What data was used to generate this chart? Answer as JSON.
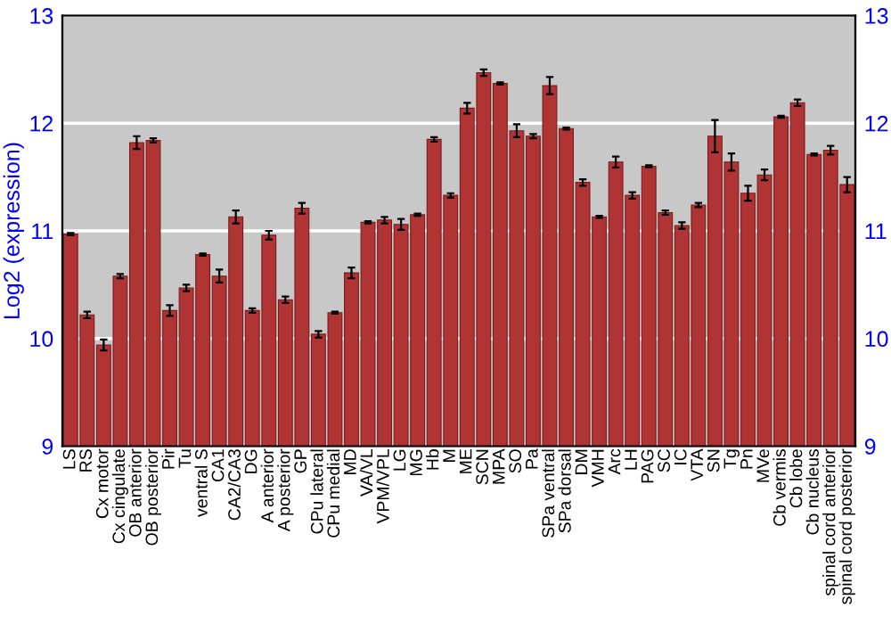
{
  "chart_data": {
    "type": "bar",
    "ylabel": "Log2 (expression)",
    "categories": [
      "LS",
      "RS",
      "Cx motor",
      "Cx cingulate",
      "OB anterior",
      "OB posterior",
      "Pir",
      "Tu",
      "ventral S",
      "CA1",
      "CA2/CA3",
      "DG",
      "A anterior",
      "A posterior",
      "GP",
      "CPu lateral",
      "CPu medial",
      "MD",
      "VA/VL",
      "VPM/VPL",
      "LG",
      "MG",
      "Hb",
      "M",
      "ME",
      "SCN",
      "MPA",
      "SO",
      "Pa",
      "SPa ventral",
      "SPa dorsal",
      "DM",
      "VMH",
      "Arc",
      "LH",
      "PAG",
      "SC",
      "IC",
      "VTA",
      "SN",
      "Tg",
      "Pn",
      "MVe",
      "Cb vermis",
      "Cb lobe",
      "Cb nucleus",
      "spinal cord anterior",
      "spinal cord posterior"
    ],
    "values": [
      10.97,
      10.22,
      9.94,
      10.58,
      11.82,
      11.84,
      10.26,
      10.47,
      10.78,
      10.58,
      11.13,
      10.26,
      10.96,
      10.36,
      11.21,
      10.04,
      10.24,
      10.61,
      11.08,
      11.1,
      11.06,
      11.15,
      11.85,
      11.33,
      12.14,
      12.47,
      12.37,
      11.93,
      11.88,
      12.35,
      11.95,
      11.45,
      11.13,
      11.64,
      11.33,
      11.6,
      11.17,
      11.05,
      11.24,
      11.88,
      11.64,
      11.35,
      11.52,
      12.06,
      12.19,
      11.71,
      11.75,
      11.43
    ],
    "errors": [
      0.01,
      0.03,
      0.05,
      0.02,
      0.06,
      0.02,
      0.05,
      0.03,
      0.01,
      0.06,
      0.06,
      0.02,
      0.04,
      0.03,
      0.05,
      0.03,
      0.01,
      0.05,
      0.01,
      0.03,
      0.05,
      0.01,
      0.02,
      0.02,
      0.05,
      0.03,
      0.01,
      0.06,
      0.02,
      0.08,
      0.01,
      0.03,
      0.01,
      0.05,
      0.03,
      0.01,
      0.02,
      0.03,
      0.02,
      0.15,
      0.08,
      0.07,
      0.05,
      0.01,
      0.03,
      0.01,
      0.04,
      0.07
    ],
    "color": "#b03434",
    "ylim": [
      9,
      13
    ],
    "yticks": [
      9,
      10,
      11,
      12,
      13
    ],
    "y2lim": [
      9,
      13
    ],
    "y2ticks": [
      9,
      10,
      11,
      12,
      13
    ],
    "grid": "y"
  }
}
